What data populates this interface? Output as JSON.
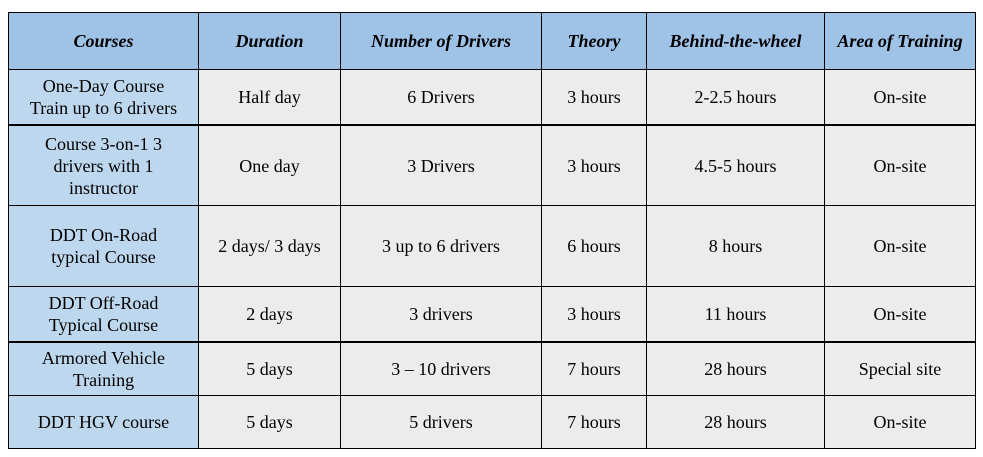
{
  "table": {
    "headers": {
      "courses": "Courses",
      "duration": "Duration",
      "drivers": "Number of Drivers",
      "theory": "Theory",
      "behind_wheel": "Behind-the-wheel",
      "area": "Area of Training"
    },
    "rows": [
      {
        "course_line1": "One-Day Course",
        "course_line2": "Train up to 6 drivers",
        "course_line3": "",
        "duration": "Half day",
        "drivers": "6 Drivers",
        "theory": "3 hours",
        "behind_wheel": "2-2.5 hours",
        "area": "On-site"
      },
      {
        "course_line1": "Course 3-on-1 3",
        "course_line2": "drivers with 1",
        "course_line3": "instructor",
        "duration": "One day",
        "drivers": "3 Drivers",
        "theory": "3 hours",
        "behind_wheel": "4.5-5 hours",
        "area": "On-site"
      },
      {
        "course_line1": "DDT On-Road",
        "course_line2": "typical Course",
        "course_line3": "",
        "duration": "2 days/ 3 days",
        "drivers": "3 up to 6 drivers",
        "theory": "6 hours",
        "behind_wheel": "8 hours",
        "area": "On-site"
      },
      {
        "course_line1": "DDT Off-Road",
        "course_line2": "Typical Course",
        "course_line3": "",
        "duration": "2 days",
        "drivers": "3 drivers",
        "theory": "3 hours",
        "behind_wheel": "11 hours",
        "area": "On-site"
      },
      {
        "course_line1": "Armored Vehicle",
        "course_line2": "Training",
        "course_line3": "",
        "duration": "5 days",
        "drivers": "3 – 10 drivers",
        "theory": "7 hours",
        "behind_wheel": "28 hours",
        "area": "Special site"
      },
      {
        "course_line1": "DDT HGV course",
        "course_line2": "",
        "course_line3": "",
        "duration": "5 days",
        "drivers": "5 drivers",
        "theory": "7 hours",
        "behind_wheel": "28 hours",
        "area": "On-site"
      }
    ]
  }
}
